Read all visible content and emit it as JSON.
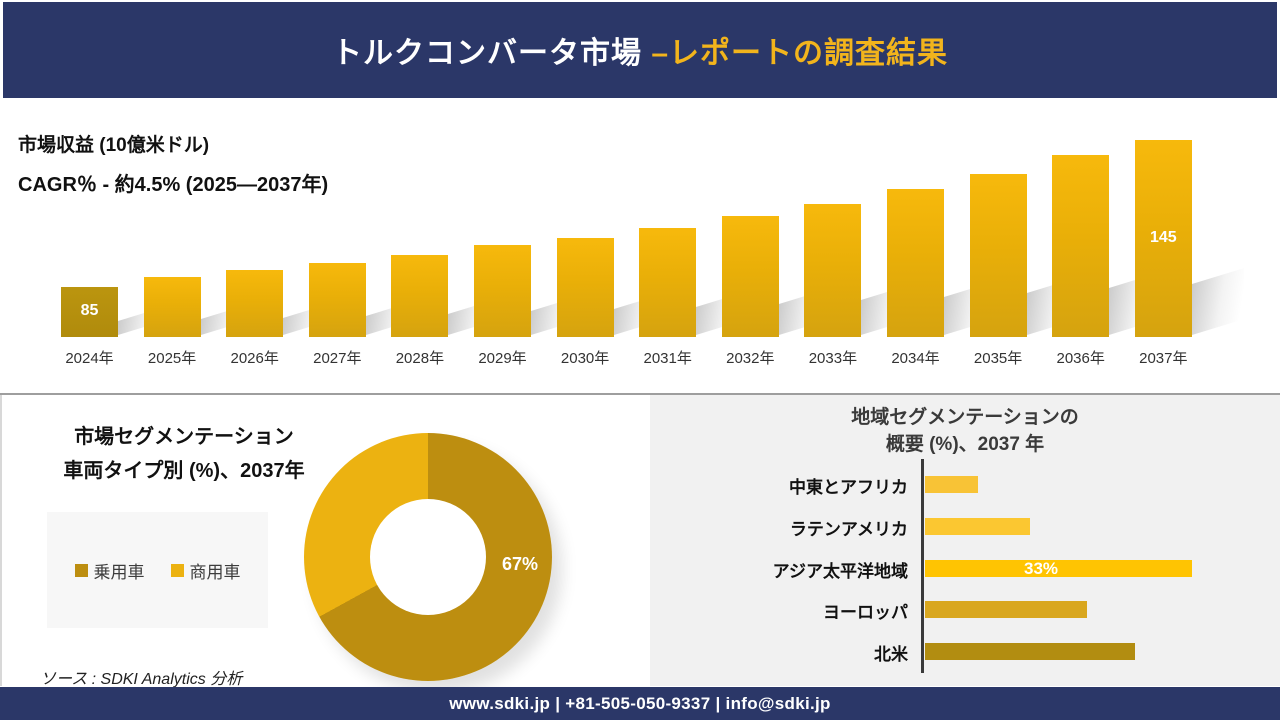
{
  "header": {
    "title_white": "トルクコンバータ市場 ",
    "title_gold": "–レポートの調査結果"
  },
  "revenue_section": {
    "metric_label": "市場収益 (10億米ドル)",
    "cagr_label": "CAGR％ - 約4.5% (2025―2037年)"
  },
  "segmentation_section": {
    "title_line1": "市場セグメンテーション",
    "title_line2": "車両タイプ別 (%)、2037年",
    "legend": {
      "items": [
        {
          "label": "乗用車",
          "color": "#bd8e10"
        },
        {
          "label": "商用車",
          "color": "#ecb211"
        }
      ]
    },
    "source": "ソース : SDKI Analytics 分析"
  },
  "regional_section": {
    "title_line1": "地域セグメンテーションの",
    "title_line2": "概要 (%)、2037 年"
  },
  "footer": {
    "contact": "www.sdki.jp | +81-505-050-9337 | info@sdki.jp"
  },
  "colors": {
    "navy": "#2b3768",
    "title_gold": "#f2b41c",
    "bar_gold_top": "#f7b90c",
    "bar_gold_bottom": "#d5a30f",
    "first_bar_gold": "#b5910e"
  },
  "chart_data": [
    {
      "type": "bar",
      "title": "市場収益 (10億米ドル)",
      "subtitle": "CAGR％ - 約4.5% (2025―2037年)",
      "unit": "10億米ドル",
      "categories": [
        "2024年",
        "2025年",
        "2026年",
        "2027年",
        "2028年",
        "2029年",
        "2030年",
        "2031年",
        "2032年",
        "2033年",
        "2034年",
        "2035年",
        "2036年",
        "2037年"
      ],
      "values": [
        85,
        89,
        92,
        95,
        98,
        102,
        105,
        109,
        114,
        119,
        125,
        131,
        139,
        145
      ],
      "data_labels": [
        {
          "index": 0,
          "text": "85"
        },
        {
          "index": 13,
          "text": "145"
        }
      ],
      "axis": "none",
      "grid": false,
      "legend_position": "none"
    },
    {
      "type": "pie",
      "donut": true,
      "title": "市場セグメンテーション 車両タイプ別 (%)、2037年",
      "labels": [
        "乗用車",
        "商用車"
      ],
      "values": [
        67,
        33
      ],
      "colors": [
        "#bd8e10",
        "#ecb211"
      ],
      "data_labels": [
        {
          "index": 0,
          "text": "67%"
        }
      ],
      "legend_position": "left"
    },
    {
      "type": "bar",
      "orientation": "horizontal",
      "title": "地域セグメンテーションの概要 (%)、2037 年",
      "categories": [
        "中東とアフリカ",
        "ラテンアメリカ",
        "アジア太平洋地域",
        "ヨーロッパ",
        "北米"
      ],
      "values": [
        6.5,
        13,
        33,
        20,
        26
      ],
      "colors": [
        "#f8c336",
        "#fbc731",
        "#ffc402",
        "#d9a71f",
        "#b28d11"
      ],
      "data_labels": [
        {
          "index": 2,
          "text": "33%"
        }
      ],
      "axis": "category-axis-only",
      "grid": false,
      "legend_position": "none"
    }
  ]
}
